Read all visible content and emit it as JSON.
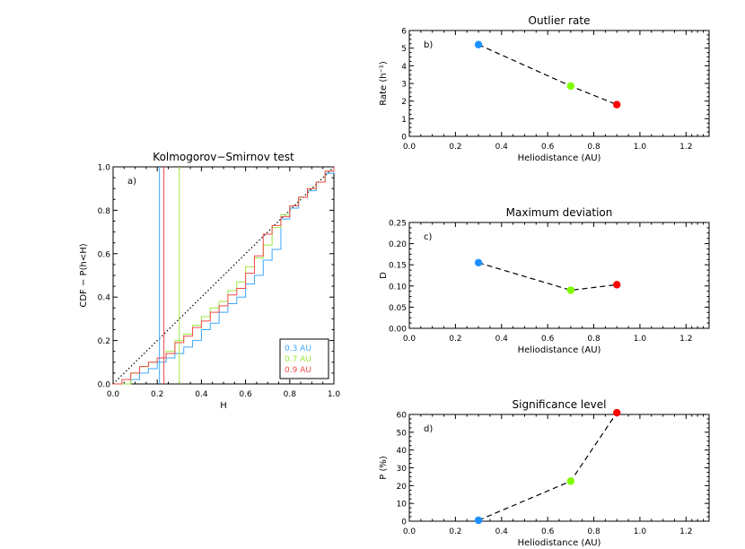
{
  "chart_data": [
    {
      "id": "a",
      "type": "line",
      "title": "Kolmogorov−Smirnov test",
      "panel_label": "a)",
      "xlabel": "H",
      "ylabel": "CDF − P(h<H)",
      "xlim": [
        0.0,
        1.0
      ],
      "ylim": [
        0.0,
        1.0
      ],
      "xticks": [
        "0.0",
        "0.2",
        "0.4",
        "0.6",
        "0.8",
        "1.0"
      ],
      "yticks": [
        "0.0",
        "0.2",
        "0.4",
        "0.6",
        "0.8",
        "1.0"
      ],
      "legend_position": "bottom-right",
      "reference_line": {
        "style": "dotted",
        "color": "#000000",
        "x": [
          0,
          1
        ],
        "y": [
          0,
          1
        ]
      },
      "series": [
        {
          "name": "0.3 AU",
          "color": "#3ba7ff",
          "threshold_x": 0.21,
          "x": [
            0.0,
            0.04,
            0.08,
            0.12,
            0.16,
            0.2,
            0.24,
            0.28,
            0.32,
            0.36,
            0.4,
            0.44,
            0.48,
            0.52,
            0.56,
            0.6,
            0.64,
            0.68,
            0.72,
            0.76,
            0.8,
            0.84,
            0.88,
            0.92,
            0.96,
            1.0
          ],
          "y": [
            0.0,
            0.0,
            0.02,
            0.05,
            0.07,
            0.1,
            0.12,
            0.14,
            0.17,
            0.2,
            0.25,
            0.28,
            0.33,
            0.37,
            0.4,
            0.46,
            0.5,
            0.57,
            0.62,
            0.76,
            0.81,
            0.86,
            0.89,
            0.93,
            0.97,
            1.0
          ]
        },
        {
          "name": "0.7 AU",
          "color": "#9bea3b",
          "threshold_x": 0.3,
          "x": [
            0.0,
            0.04,
            0.08,
            0.12,
            0.16,
            0.2,
            0.24,
            0.28,
            0.32,
            0.36,
            0.4,
            0.44,
            0.48,
            0.52,
            0.56,
            0.6,
            0.64,
            0.68,
            0.72,
            0.76,
            0.8,
            0.84,
            0.88,
            0.92,
            0.96,
            1.0
          ],
          "y": [
            0.0,
            0.0,
            0.05,
            0.08,
            0.1,
            0.12,
            0.15,
            0.2,
            0.23,
            0.27,
            0.31,
            0.35,
            0.38,
            0.43,
            0.47,
            0.54,
            0.58,
            0.64,
            0.72,
            0.78,
            0.82,
            0.86,
            0.9,
            0.93,
            0.98,
            1.0
          ]
        },
        {
          "name": "0.9 AU",
          "color": "#ef4a4a",
          "threshold_x": 0.23,
          "x": [
            0.0,
            0.04,
            0.08,
            0.12,
            0.16,
            0.2,
            0.24,
            0.28,
            0.32,
            0.36,
            0.4,
            0.44,
            0.48,
            0.52,
            0.56,
            0.6,
            0.64,
            0.68,
            0.72,
            0.76,
            0.8,
            0.84,
            0.88,
            0.92,
            0.96,
            1.0
          ],
          "y": [
            0.0,
            0.02,
            0.05,
            0.08,
            0.1,
            0.12,
            0.14,
            0.19,
            0.22,
            0.26,
            0.29,
            0.33,
            0.36,
            0.41,
            0.44,
            0.51,
            0.59,
            0.69,
            0.73,
            0.77,
            0.82,
            0.86,
            0.9,
            0.93,
            0.98,
            1.0
          ]
        }
      ]
    },
    {
      "id": "b",
      "type": "scatter",
      "title": "Outlier rate",
      "panel_label": "b)",
      "xlabel": "Heliodistance (AU)",
      "ylabel": "Rate (h⁻¹)",
      "xlim": [
        0.0,
        1.3
      ],
      "ylim": [
        0,
        6
      ],
      "xticks": [
        "0.0",
        "0.2",
        "0.4",
        "0.6",
        "0.8",
        "1.0",
        "1.2"
      ],
      "yticks": [
        "0",
        "1",
        "2",
        "3",
        "4",
        "5",
        "6"
      ],
      "connector": "dashed",
      "x": [
        0.3,
        0.7,
        0.9
      ],
      "y": [
        5.2,
        2.85,
        1.8
      ],
      "point_colors": [
        "#1e90ff",
        "#7fff00",
        "#ff0000"
      ]
    },
    {
      "id": "c",
      "type": "scatter",
      "title": "Maximum deviation",
      "panel_label": "c)",
      "xlabel": "Heliodistance (AU)",
      "ylabel": "D",
      "xlim": [
        0.0,
        1.3
      ],
      "ylim": [
        0.0,
        0.25
      ],
      "xticks": [
        "0.0",
        "0.2",
        "0.4",
        "0.6",
        "0.8",
        "1.0",
        "1.2"
      ],
      "yticks": [
        "0.00",
        "0.05",
        "0.10",
        "0.15",
        "0.20",
        "0.25"
      ],
      "connector": "dashed",
      "x": [
        0.3,
        0.7,
        0.9
      ],
      "y": [
        0.155,
        0.09,
        0.103
      ],
      "point_colors": [
        "#1e90ff",
        "#7fff00",
        "#ff0000"
      ]
    },
    {
      "id": "d",
      "type": "scatter",
      "title": "Significance level",
      "panel_label": "d)",
      "xlabel": "Heliodistance (AU)",
      "ylabel": "P (%)",
      "xlim": [
        0.0,
        1.3
      ],
      "ylim": [
        0,
        60
      ],
      "xticks": [
        "0.0",
        "0.2",
        "0.4",
        "0.6",
        "0.8",
        "1.0",
        "1.2"
      ],
      "yticks": [
        "0",
        "10",
        "20",
        "30",
        "40",
        "50",
        "60"
      ],
      "connector": "dashed",
      "x": [
        0.3,
        0.7,
        0.9
      ],
      "y": [
        0.5,
        22.5,
        61
      ],
      "point_colors": [
        "#1e90ff",
        "#7fff00",
        "#ff0000"
      ]
    }
  ]
}
